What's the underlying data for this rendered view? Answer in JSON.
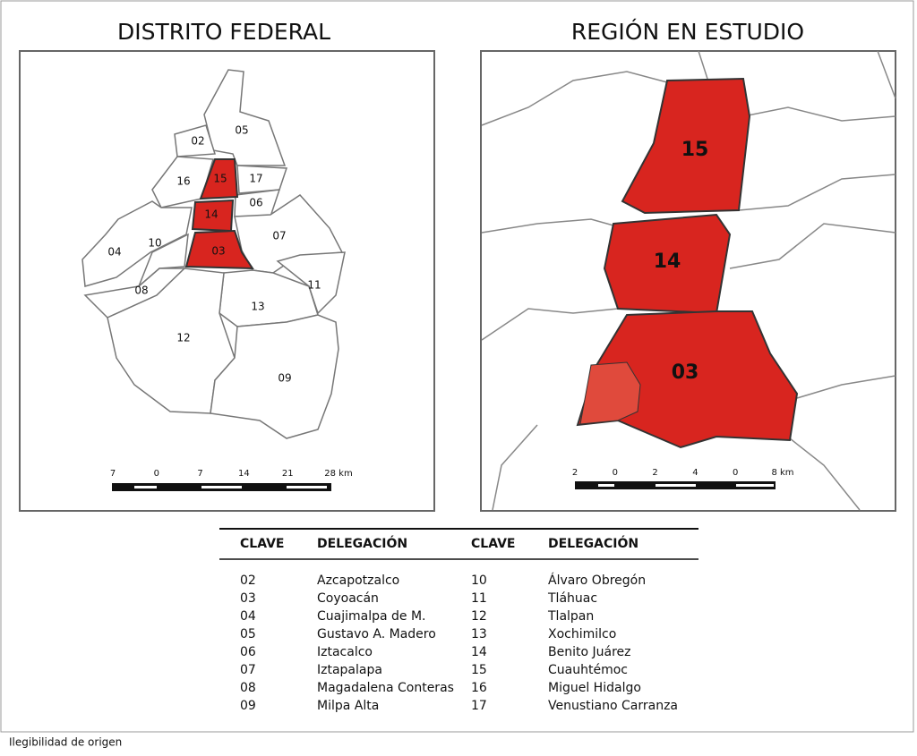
{
  "maps": [
    {
      "title": "DISTRITO FEDERAL",
      "labels": [
        "02",
        "05",
        "15",
        "17",
        "16",
        "14",
        "06",
        "07",
        "04",
        "10",
        "03",
        "08",
        "11",
        "13",
        "12",
        "09"
      ],
      "scale": [
        "7",
        "0",
        "7",
        "14",
        "21",
        "28 km"
      ]
    },
    {
      "title": "REGIÓN EN ESTUDIO",
      "labels": [
        "15",
        "14",
        "03"
      ],
      "scale": [
        "2",
        "0",
        "2",
        "4",
        "0",
        "8 km"
      ]
    }
  ],
  "table": {
    "header": [
      "CLAVE",
      "DELEGACIÓN",
      "CLAVE",
      "DELEGACIÓN"
    ],
    "rows": [
      [
        "02",
        "Azcapotzalco",
        "10",
        "Álvaro Obregón"
      ],
      [
        "03",
        "Coyoacán",
        "11",
        "Tláhuac"
      ],
      [
        "04",
        "Cuajimalpa de M.",
        "12",
        "Tlalpan"
      ],
      [
        "05",
        "Gustavo A. Madero",
        "13",
        "Xochimilco"
      ],
      [
        "06",
        "Iztacalco",
        "14",
        "Benito Juárez"
      ],
      [
        "07",
        "Iztapalapa",
        "15",
        "Cuauhtémoc"
      ],
      [
        "08",
        "Magadalena Conteras",
        "16",
        "Miguel Hidalgo"
      ],
      [
        "09",
        "Milpa Alta",
        "17",
        "Venustiano Carranza"
      ]
    ]
  },
  "note": "Ilegibilidad de origen"
}
